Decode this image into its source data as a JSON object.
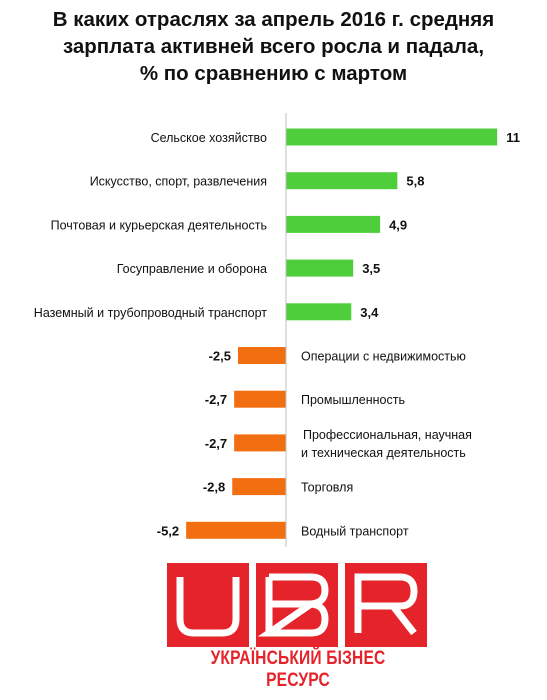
{
  "chart_data": {
    "type": "bar",
    "orientation": "horizontal",
    "title": "В каких отраслях за апрель 2016 г. средняя зарплата активней всего росла и падала, % по сравнению с мартом",
    "title_lines": [
      "В каких отраслях за апрель 2016 г. средняя",
      "зарплата активней всего росла и падала,",
      "% по сравнению с мартом"
    ],
    "categories": [
      [
        "Сельское хозяйство"
      ],
      [
        "Искусство, спорт, развлечения"
      ],
      [
        "Почтовая и курьерская деятельность"
      ],
      [
        "Госуправление и оборона"
      ],
      [
        "Наземный и трубопроводный транспорт"
      ],
      [
        "Операции с недвижимостью"
      ],
      [
        "Промышленность"
      ],
      [
        "Профессиональная, научная",
        "и техническая  деятельность"
      ],
      [
        "Торговля"
      ],
      [
        "Водный транспорт"
      ]
    ],
    "values": [
      11,
      5.8,
      4.9,
      3.5,
      3.4,
      -2.5,
      -2.7,
      -2.7,
      -2.8,
      -5.2
    ],
    "value_labels": [
      "11",
      "5,8",
      "4,9",
      "3,5",
      "3,4",
      "-2,5",
      "-2,7",
      "-2,7",
      "-2,8",
      "-5,2"
    ],
    "colors": {
      "positive": "#4fce3c",
      "negative": "#f26f11",
      "axis": "#bfbfbf"
    },
    "xlim": [
      -6,
      11
    ],
    "grid": false,
    "legend": "none"
  },
  "logo": {
    "letters": [
      "U",
      "B",
      "R"
    ],
    "caption": "УКРАЇНСЬКИЙ БІЗНЕС РЕСУРС",
    "color": "#e5232a"
  }
}
